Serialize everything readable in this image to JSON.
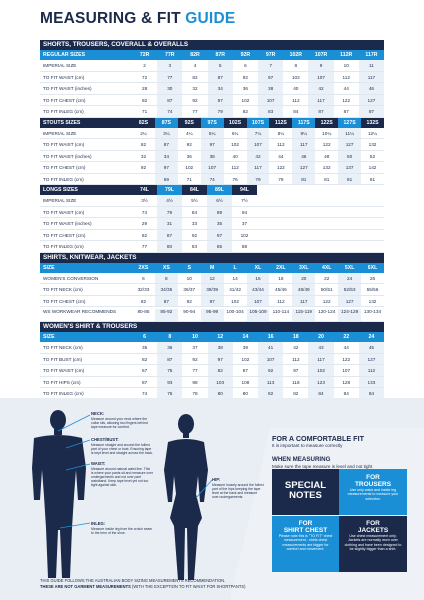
{
  "title": {
    "main": "MEASURING & FIT ",
    "accent": "GUIDE"
  },
  "sections": {
    "shorts": {
      "title": "SHORTS, TROUSERS, COVERALL & OVERALLS",
      "regular": {
        "label": "REGULAR SIZES",
        "sizes": [
          "72R",
          "77R",
          "82R",
          "87R",
          "92R",
          "97R",
          "102R",
          "107R",
          "112R",
          "117R"
        ],
        "rows": [
          {
            "label": "IMPERIAL SIZE",
            "values": [
              "2",
              "3",
              "4",
              "5",
              "6",
              "7",
              "8",
              "9",
              "10",
              "11"
            ]
          },
          {
            "label": "TO FIT WAIST (cm)",
            "values": [
              "72",
              "77",
              "82",
              "87",
              "92",
              "97",
              "102",
              "107",
              "112",
              "117"
            ]
          },
          {
            "label": "TO FIT WAIST (inches)",
            "values": [
              "28",
              "30",
              "32",
              "34",
              "36",
              "38",
              "40",
              "42",
              "44",
              "46"
            ]
          },
          {
            "label": "TO FIT CHEST (cm)",
            "values": [
              "82",
              "87",
              "92",
              "97",
              "102",
              "107",
              "112",
              "117",
              "122",
              "127"
            ]
          },
          {
            "label": "TO FIT INLEG (cm)",
            "values": [
              "71",
              "74",
              "77",
              "79",
              "82",
              "83",
              "84",
              "87",
              "87",
              "87"
            ]
          }
        ]
      },
      "stouts": {
        "label": "STOUTS SIZES",
        "sizes": [
          "82S",
          "87S",
          "92S",
          "97S",
          "102S",
          "107S",
          "112S",
          "117S",
          "122S",
          "127S",
          "132S"
        ],
        "rows": [
          {
            "label": "IMPERIAL SIZE",
            "values": [
              "2¼",
              "3¼",
              "4¼",
              "5¼",
              "6¼",
              "7¼",
              "8¼",
              "9¼",
              "10¼",
              "11¼",
              "12¼"
            ]
          },
          {
            "label": "TO FIT WAIST (cm)",
            "values": [
              "82",
              "87",
              "92",
              "97",
              "102",
              "107",
              "112",
              "117",
              "122",
              "127",
              "132"
            ]
          },
          {
            "label": "TO FIT WAIST (inches)",
            "values": [
              "32",
              "34",
              "36",
              "38",
              "40",
              "42",
              "44",
              "46",
              "48",
              "50",
              "52"
            ]
          },
          {
            "label": "TO FIT CHEST (cm)",
            "values": [
              "92",
              "97",
              "102",
              "107",
              "112",
              "117",
              "122",
              "127",
              "132",
              "137",
              "142"
            ]
          },
          {
            "label": "TO FIT INLEG (cm)",
            "values": [
              "",
              "69",
              "71",
              "74",
              "76",
              "79",
              "79",
              "81",
              "81",
              "81",
              "81"
            ]
          }
        ]
      },
      "longs": {
        "label": "LONGS SIZES",
        "sizes": [
          "74L",
          "79L",
          "84L",
          "89L",
          "94L"
        ],
        "rows": [
          {
            "label": "IMPERIAL SIZE",
            "values": [
              "3½",
              "4½",
              "5½",
              "6½",
              "7½"
            ]
          },
          {
            "label": "TO FIT WAIST (cm)",
            "values": [
              "74",
              "79",
              "84",
              "89",
              "94"
            ]
          },
          {
            "label": "TO FIT WAIST (inches)",
            "values": [
              "29",
              "31",
              "33",
              "35",
              "37"
            ]
          },
          {
            "label": "TO FIT CHEST (cm)",
            "values": [
              "82",
              "87",
              "92",
              "97",
              "102"
            ]
          },
          {
            "label": "TO FIT INLEG (cm)",
            "values": [
              "77",
              "80",
              "83",
              "85",
              "88"
            ]
          }
        ]
      }
    },
    "shirts": {
      "title": "SHIRTS, KNITWEAR, JACKETS",
      "label": "SIZE",
      "sizes": [
        "2XS",
        "XS",
        "S",
        "M",
        "L",
        "XL",
        "2XL",
        "3XL",
        "4XL",
        "5XL",
        "6XL"
      ],
      "rows": [
        {
          "label": "WOMEN'S CONVERSION",
          "values": [
            "6",
            "8",
            "10",
            "12",
            "14",
            "16",
            "18",
            "20",
            "22",
            "24",
            "26"
          ]
        },
        {
          "label": "TO FIT NECK (cm)",
          "values": [
            "32/33",
            "34/35",
            "36/37",
            "38/39",
            "41/42",
            "43/44",
            "45/46",
            "48/49",
            "50/51",
            "52/53",
            "55/56"
          ]
        },
        {
          "label": "TO FIT CHEST (cm)",
          "values": [
            "82",
            "87",
            "92",
            "97",
            "102",
            "107",
            "112",
            "117",
            "122",
            "127",
            "132"
          ]
        },
        {
          "label": "WS WORKWEAR RECOMMENDS",
          "values": [
            "80-85",
            "85-92",
            "90-94",
            "95-99",
            "100-104",
            "105-109",
            "110-114",
            "115-119",
            "120-124",
            "124-129",
            "130-134"
          ]
        }
      ]
    },
    "womens": {
      "title": "WOMEN'S SHIRT & TROUSERS",
      "label": "SIZE",
      "sizes": [
        "6",
        "8",
        "10",
        "12",
        "14",
        "16",
        "18",
        "20",
        "22",
        "24"
      ],
      "rows": [
        {
          "label": "TO FIT NECK (cm)",
          "values": [
            "35",
            "36",
            "37",
            "38",
            "39",
            "41",
            "42",
            "43",
            "44",
            "45"
          ]
        },
        {
          "label": "TO FIT BUST (cm)",
          "values": [
            "82",
            "87",
            "92",
            "97",
            "102",
            "107",
            "112",
            "117",
            "122",
            "127"
          ]
        },
        {
          "label": "TO FIT WAIST (cm)",
          "values": [
            "67",
            "75",
            "77",
            "82",
            "87",
            "92",
            "97",
            "102",
            "107",
            "112"
          ]
        },
        {
          "label": "TO FIT HIPS (cm)",
          "values": [
            "87",
            "93",
            "98",
            "103",
            "108",
            "113",
            "118",
            "123",
            "128",
            "133"
          ]
        },
        {
          "label": "TO FIT INLEG (cm)",
          "values": [
            "74",
            "76",
            "78",
            "80",
            "80",
            "82",
            "82",
            "84",
            "84",
            "84"
          ]
        }
      ]
    }
  },
  "callouts": {
    "neck": {
      "head": "NECK:",
      "body": "Measure around your neck where the collar sits, allowing two fingers behind tape measure for comfort."
    },
    "chest": {
      "head": "CHEST/BUST:",
      "body": "Measure straight and around the fullest part of your chest or bust. Ensuring tape is kept level and straight across the back."
    },
    "waist": {
      "head": "WAIST:",
      "body": "Measure around natural waist line. This is where your pants sit and measure over undergarments and not over pant waistband. Keep tape level yet not too tight against skin."
    },
    "inleg": {
      "head": "INLEG:",
      "body": "Measure inside leg from the crotch seam to the hem of the shoe."
    },
    "hip": {
      "head": "HIP:",
      "body": "Measure loosely around the fullest part of the hips keeping the tape level at the back and measure over undergarments."
    }
  },
  "fit": {
    "title": "FOR A COMFORTABLE FIT",
    "subtitle": "It is important to measure correctly",
    "measuring_title": "WHEN MEASURING",
    "measuring_sub": "Make sure the tape measure is level and not tight"
  },
  "boxes": {
    "special": {
      "line1": "SPECIAL",
      "line2": "NOTES"
    },
    "trousers": {
      "t1": "FOR",
      "t2": "TROUSERS",
      "body": "Use only waist and inside leg measurements to measure your selection."
    },
    "chest": {
      "t1": "FOR",
      "t2": "SHIRT CHEST",
      "body": "Please note this is \"TO FIT\" chest measurement - shirts chest measurements are bigger for comfort and movement."
    },
    "jackets": {
      "t1": "FOR",
      "t2": "JACKETS",
      "body": "Use chest measurement only. Jackets are normally worn over clothing and have been designed to be slightly bigger than a shirt."
    }
  },
  "footer": {
    "line1": "THIS GUIDE FOLLOWS THE AUSTRALIAN BODY SIZING MEASUREMENTS RECOMMENDATION.",
    "line2_bold": "THESE ARE NOT GARMENT MEASUREMENTS",
    "line2_rest": " (WITH THE EXCEPTION TO FIT WAIST FOR SHORTPANTS)"
  },
  "colors": {
    "navy": "#1b2a4a",
    "blue": "#1a8fd6"
  }
}
